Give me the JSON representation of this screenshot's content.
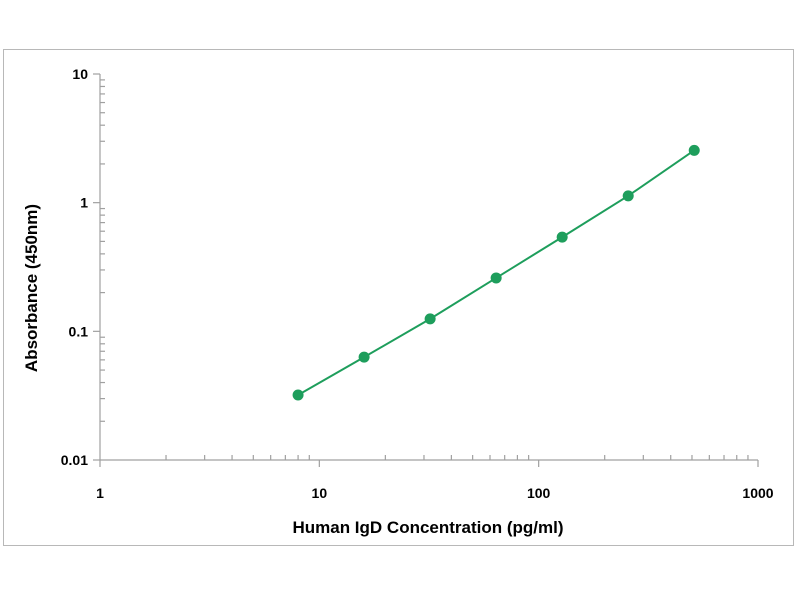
{
  "chart_data": {
    "type": "line",
    "xlabel": "Human IgD Concentration (pg/ml)",
    "ylabel": "Absorbance (450nm)",
    "xscale": "log",
    "yscale": "log",
    "xlim": [
      1,
      1000
    ],
    "ylim": [
      0.01,
      10
    ],
    "x_ticks": [
      "1",
      "10",
      "100",
      "1000"
    ],
    "y_ticks": [
      "10",
      "1",
      "0.1",
      "0.01"
    ],
    "grid": false,
    "legend": "none",
    "color": "#1e9e5c",
    "series": [
      {
        "x": [
          8,
          16,
          32,
          64,
          128,
          256,
          512
        ],
        "y": [
          0.032,
          0.063,
          0.125,
          0.26,
          0.54,
          1.13,
          2.55
        ]
      }
    ]
  }
}
